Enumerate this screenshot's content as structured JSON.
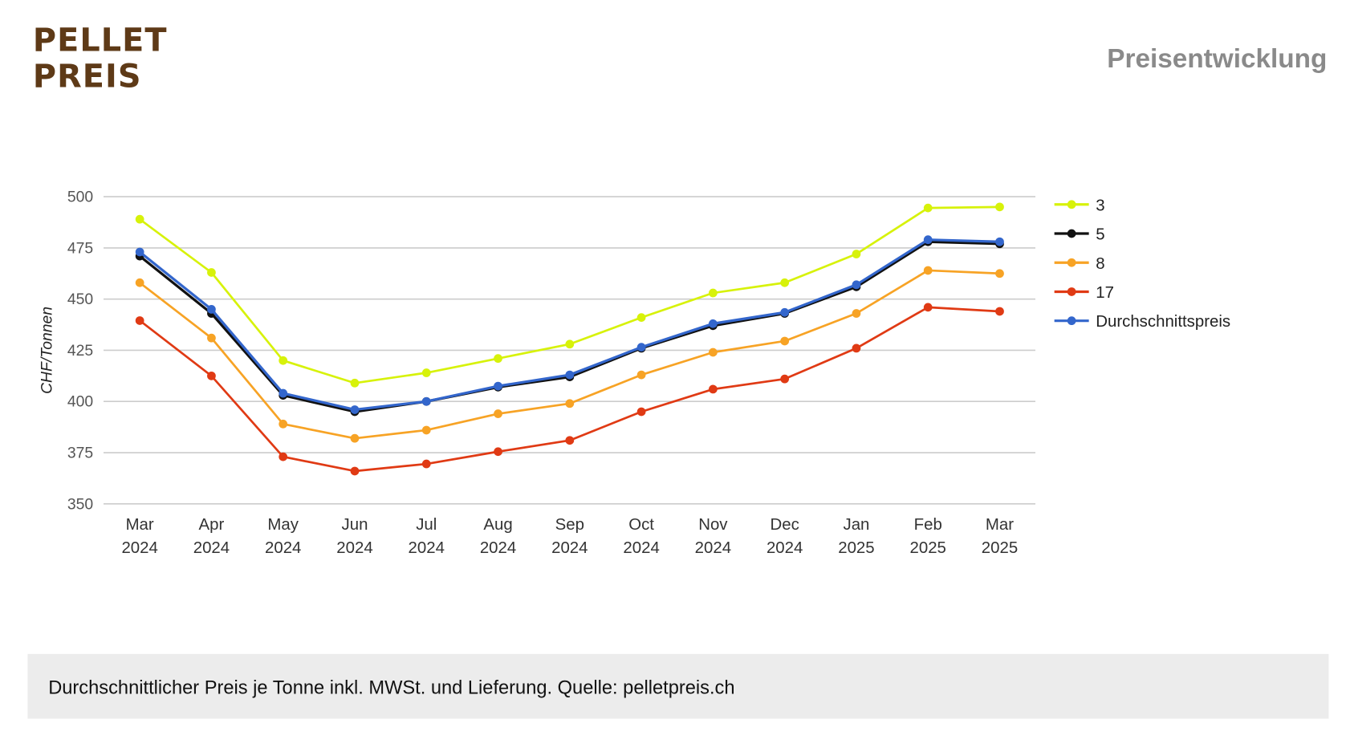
{
  "header": {
    "logo_line1": "PELLET",
    "logo_line2": "PREIS",
    "title": "Preisentwicklung"
  },
  "footer": {
    "note": "Durchschnittlicher Preis je Tonne inkl. MWSt. und Lieferung. Quelle: pelletpreis.ch"
  },
  "chart_data": {
    "type": "line",
    "title": "Preisentwicklung",
    "xlabel": "",
    "ylabel": "CHF/Tonnen",
    "ylim": [
      350,
      500
    ],
    "yticks": [
      350,
      375,
      400,
      425,
      450,
      475,
      500
    ],
    "grid": true,
    "legend_position": "right",
    "categories": [
      [
        "Mar",
        "2024"
      ],
      [
        "Apr",
        "2024"
      ],
      [
        "May",
        "2024"
      ],
      [
        "Jun",
        "2024"
      ],
      [
        "Jul",
        "2024"
      ],
      [
        "Aug",
        "2024"
      ],
      [
        "Sep",
        "2024"
      ],
      [
        "Oct",
        "2024"
      ],
      [
        "Nov",
        "2024"
      ],
      [
        "Dec",
        "2024"
      ],
      [
        "Jan",
        "2025"
      ],
      [
        "Feb",
        "2025"
      ],
      [
        "Mar",
        "2025"
      ]
    ],
    "series": [
      {
        "name": "3",
        "color": "#d7f20a",
        "values": [
          489,
          463,
          420,
          409,
          414,
          421,
          428,
          441,
          453,
          458,
          472,
          494.5,
          495
        ]
      },
      {
        "name": "5",
        "color": "#111111",
        "values": [
          471,
          443,
          403,
          395,
          400,
          407,
          412,
          426,
          437,
          443,
          456,
          478,
          477
        ]
      },
      {
        "name": "8",
        "color": "#f7a325",
        "values": [
          458,
          431,
          389,
          382,
          386,
          394,
          399,
          413,
          424,
          429.5,
          443,
          464,
          462.5
        ]
      },
      {
        "name": "17",
        "color": "#e03a14",
        "values": [
          439.5,
          412.5,
          373,
          366,
          369.5,
          375.5,
          381,
          395,
          406,
          411,
          426,
          446,
          444
        ]
      },
      {
        "name": "Durchschnittspreis",
        "color": "#3366cc",
        "values": [
          473,
          445,
          404,
          396,
          400,
          407.5,
          413,
          426.5,
          438,
          443.5,
          457,
          479,
          478
        ]
      }
    ]
  }
}
